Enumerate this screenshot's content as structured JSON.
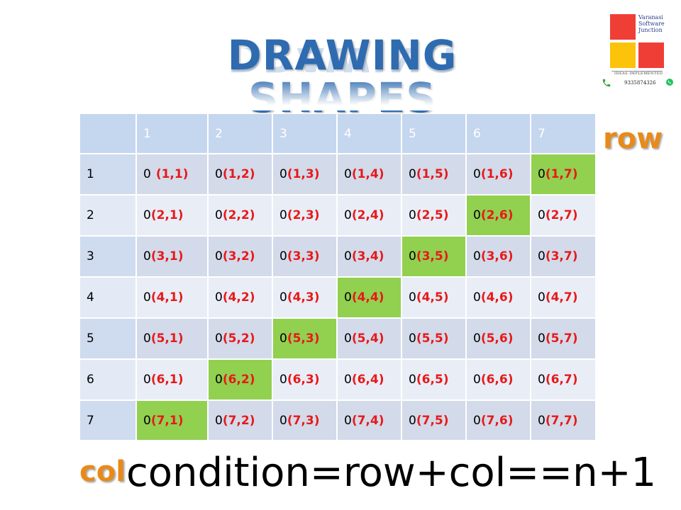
{
  "title": "DRAWING SHAPES",
  "logo": {
    "name_lines": [
      "Varanasi",
      "Software",
      "Junction"
    ],
    "tagline": "IDEAS IMPLEMENTED",
    "phone": "9335874326",
    "colors": {
      "red": "#ef3e36",
      "yellow": "#fcc30b"
    },
    "icons": [
      "phone-icon",
      "whatsapp-icon"
    ]
  },
  "table": {
    "corner": "",
    "col_headers": [
      "1",
      "2",
      "3",
      "4",
      "5",
      "6",
      "7"
    ],
    "row_headers": [
      "1",
      "2",
      "3",
      "4",
      "5",
      "6",
      "7"
    ],
    "cell_value": "0",
    "highlight_color": "#92d050",
    "rows": [
      [
        {
          "v": "0",
          "c": "(1,1)",
          "hl": false
        },
        {
          "v": "0",
          "c": "(1,2)",
          "hl": false
        },
        {
          "v": "0",
          "c": "(1,3)",
          "hl": false
        },
        {
          "v": "0",
          "c": "(1,4)",
          "hl": false
        },
        {
          "v": "0",
          "c": "(1,5)",
          "hl": false
        },
        {
          "v": "0",
          "c": "(1,6)",
          "hl": false
        },
        {
          "v": "0",
          "c": "(1,7)",
          "hl": true
        }
      ],
      [
        {
          "v": "0",
          "c": "(2,1)",
          "hl": false
        },
        {
          "v": "0",
          "c": "(2,2)",
          "hl": false
        },
        {
          "v": "0",
          "c": "(2,3)",
          "hl": false
        },
        {
          "v": "0",
          "c": "(2,4)",
          "hl": false
        },
        {
          "v": "0",
          "c": "(2,5)",
          "hl": false
        },
        {
          "v": "0",
          "c": "(2,6)",
          "hl": true
        },
        {
          "v": "0",
          "c": "(2,7)",
          "hl": false
        }
      ],
      [
        {
          "v": "0",
          "c": "(3,1)",
          "hl": false
        },
        {
          "v": "0",
          "c": "(3,2)",
          "hl": false
        },
        {
          "v": "0",
          "c": "(3,3)",
          "hl": false
        },
        {
          "v": "0",
          "c": "(3,4)",
          "hl": false
        },
        {
          "v": "0",
          "c": "(3,5)",
          "hl": true
        },
        {
          "v": "0",
          "c": "(3,6)",
          "hl": false
        },
        {
          "v": "0",
          "c": "(3,7)",
          "hl": false
        }
      ],
      [
        {
          "v": "0",
          "c": "(4,1)",
          "hl": false
        },
        {
          "v": "0",
          "c": "(4,2)",
          "hl": false
        },
        {
          "v": "0",
          "c": "(4,3)",
          "hl": false
        },
        {
          "v": "0",
          "c": "(4,4)",
          "hl": true
        },
        {
          "v": "0",
          "c": "(4,5)",
          "hl": false
        },
        {
          "v": "0",
          "c": "(4,6)",
          "hl": false
        },
        {
          "v": "0",
          "c": "(4,7)",
          "hl": false
        }
      ],
      [
        {
          "v": "0",
          "c": "(5,1)",
          "hl": false
        },
        {
          "v": "0",
          "c": "(5,2)",
          "hl": false
        },
        {
          "v": "0",
          "c": "(5,3)",
          "hl": true
        },
        {
          "v": "0",
          "c": "(5,4)",
          "hl": false
        },
        {
          "v": "0",
          "c": "(5,5)",
          "hl": false
        },
        {
          "v": "0",
          "c": "(5,6)",
          "hl": false
        },
        {
          "v": "0",
          "c": "(5,7)",
          "hl": false
        }
      ],
      [
        {
          "v": "0",
          "c": "(6,1)",
          "hl": false
        },
        {
          "v": "0",
          "c": "(6,2)",
          "hl": true
        },
        {
          "v": "0",
          "c": "(6,3)",
          "hl": false
        },
        {
          "v": "0",
          "c": "(6,4)",
          "hl": false
        },
        {
          "v": "0",
          "c": "(6,5)",
          "hl": false
        },
        {
          "v": "0",
          "c": "(6,6)",
          "hl": false
        },
        {
          "v": "0",
          "c": "(6,7)",
          "hl": false
        }
      ],
      [
        {
          "v": "0",
          "c": "(7,1)",
          "hl": true
        },
        {
          "v": "0",
          "c": "(7,2)",
          "hl": false
        },
        {
          "v": "0",
          "c": "(7,3)",
          "hl": false
        },
        {
          "v": "0",
          "c": "(7,4)",
          "hl": false
        },
        {
          "v": "0",
          "c": "(7,5)",
          "hl": false
        },
        {
          "v": "0",
          "c": "(7,6)",
          "hl": false
        },
        {
          "v": "0",
          "c": "(7,7)",
          "hl": false
        }
      ]
    ]
  },
  "row_label": "row",
  "col_label": "col",
  "condition": "condition=row+col==n+1",
  "colors": {
    "title": "#2e6bb0",
    "label_orange": "#e88a1a",
    "coord_red": "#e81919"
  }
}
